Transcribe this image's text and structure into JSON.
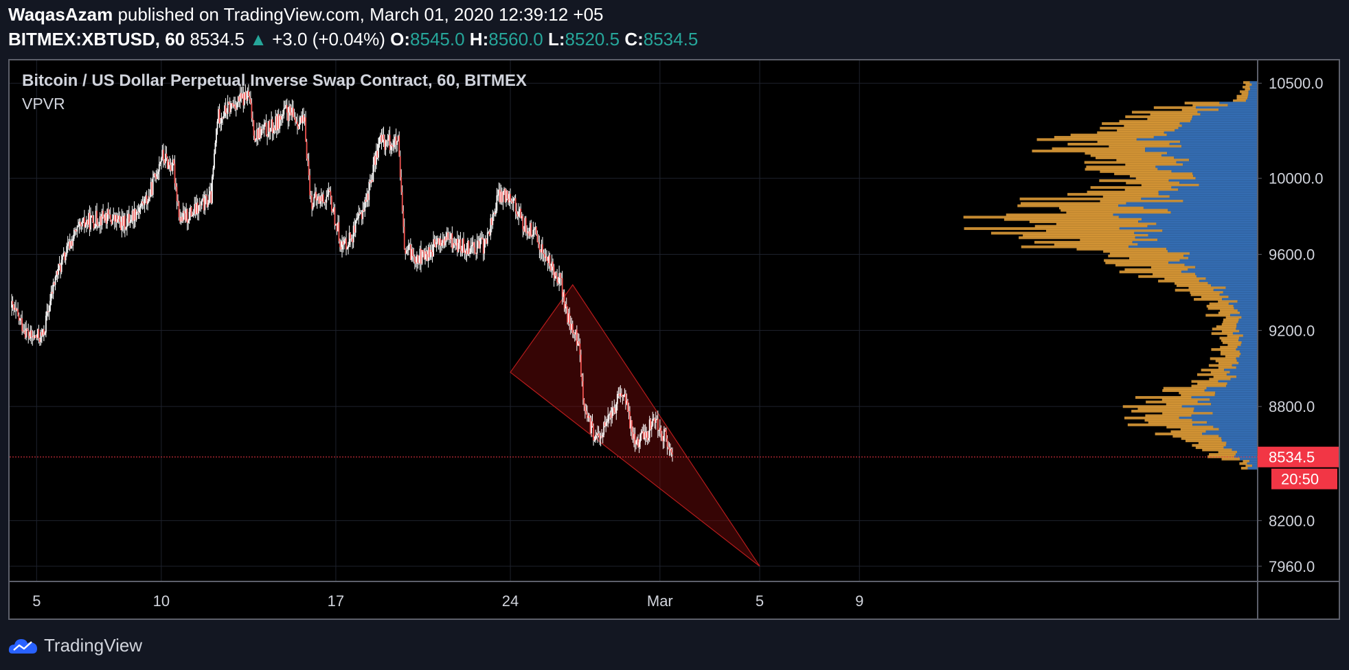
{
  "header": {
    "author": "WaqasAzam",
    "published_text": "published on TradingView.com, March 01, 2020 12:39:12 +05",
    "symbol": "BITMEX:XBTUSD, 60",
    "last_price": "8534.5",
    "change_arrow": "▲",
    "change_text": "+3.0 (+0.04%)",
    "o_label": "O:",
    "o_value": "8545.0",
    "h_label": "H:",
    "h_value": "8560.0",
    "l_label": "L:",
    "l_value": "8520.5",
    "c_label": "C:",
    "c_value": "8534.5"
  },
  "chart_title": "Bitcoin / US Dollar Perpetual Inverse Swap Contract, 60, BITMEX",
  "indicator_label": "VPVR",
  "footer": {
    "brand": "TradingView"
  },
  "colors": {
    "up": "#26a69a",
    "down": "#ef5350",
    "candle_up": "#ffffff",
    "wick": "#ffffff",
    "price_line": "#f23645",
    "vp_orange": "#e8a23a",
    "vp_blue": "#3a78c4",
    "triangle_fill": "rgba(120,10,10,0.45)",
    "triangle_edge": "#b71c1c"
  },
  "chart_data": {
    "type": "candlestick",
    "title": "Bitcoin / US Dollar Perpetual Inverse Swap Contract, 60, BITMEX",
    "x_ticks": [
      "5",
      "10",
      "17",
      "24",
      "Mar",
      "5",
      "9"
    ],
    "y_ticks": [
      10500,
      10000,
      9600,
      9200,
      8800,
      8200,
      7960
    ],
    "y_tick_labels": [
      "10500.0",
      "10000.0",
      "9600.0",
      "9200.0",
      "8800.0",
      "8200.0",
      "7960.0"
    ],
    "ylim": [
      7880,
      10620
    ],
    "last_price": 8534.5,
    "last_price_label": "8534.5",
    "countdown_label": "20:50",
    "price_path": [
      [
        "2020-02-04 00:00",
        9320
      ],
      [
        "2020-02-04 18:00",
        9160
      ],
      [
        "2020-02-05 06:00",
        9170
      ],
      [
        "2020-02-05 18:00",
        9480
      ],
      [
        "2020-02-06 12:00",
        9700
      ],
      [
        "2020-02-07 00:00",
        9770
      ],
      [
        "2020-02-07 18:00",
        9800
      ],
      [
        "2020-02-08 12:00",
        9760
      ],
      [
        "2020-02-09 12:00",
        9900
      ],
      [
        "2020-02-10 00:00",
        10120
      ],
      [
        "2020-02-10 12:00",
        10050
      ],
      [
        "2020-02-10 18:00",
        9780
      ],
      [
        "2020-02-11 12:00",
        9840
      ],
      [
        "2020-02-12 00:00",
        9900
      ],
      [
        "2020-02-12 06:00",
        10320
      ],
      [
        "2020-02-13 00:00",
        10400
      ],
      [
        "2020-02-13 12:00",
        10430
      ],
      [
        "2020-02-13 18:00",
        10230
      ],
      [
        "2020-02-14 12:00",
        10270
      ],
      [
        "2020-02-15 00:00",
        10350
      ],
      [
        "2020-02-15 18:00",
        10280
      ],
      [
        "2020-02-16 00:00",
        9880
      ],
      [
        "2020-02-16 18:00",
        9900
      ],
      [
        "2020-02-17 06:00",
        9640
      ],
      [
        "2020-02-17 18:00",
        9720
      ],
      [
        "2020-02-18 06:00",
        9900
      ],
      [
        "2020-02-18 18:00",
        10200
      ],
      [
        "2020-02-19 12:00",
        10180
      ],
      [
        "2020-02-19 18:00",
        9620
      ],
      [
        "2020-02-20 12:00",
        9580
      ],
      [
        "2020-02-21 00:00",
        9650
      ],
      [
        "2020-02-21 12:00",
        9680
      ],
      [
        "2020-02-22 00:00",
        9640
      ],
      [
        "2020-02-23 00:00",
        9650
      ],
      [
        "2020-02-23 12:00",
        9900
      ],
      [
        "2020-02-24 00:00",
        9920
      ],
      [
        "2020-02-24 12:00",
        9760
      ],
      [
        "2020-02-25 00:00",
        9700
      ],
      [
        "2020-02-25 12:00",
        9560
      ],
      [
        "2020-02-26 00:00",
        9470
      ],
      [
        "2020-02-26 06:00",
        9280
      ],
      [
        "2020-02-26 18:00",
        9120
      ],
      [
        "2020-02-27 00:00",
        8750
      ],
      [
        "2020-02-27 12:00",
        8620
      ],
      [
        "2020-02-28 00:00",
        8750
      ],
      [
        "2020-02-28 12:00",
        8880
      ],
      [
        "2020-02-29 00:00",
        8620
      ],
      [
        "2020-02-29 12:00",
        8660
      ],
      [
        "2020-02-29 18:00",
        8750
      ],
      [
        "2020-03-01 06:00",
        8620
      ],
      [
        "2020-03-01 12:00",
        8534.5
      ]
    ],
    "wedge": {
      "vertices": [
        [
          "2020-02-24 00:00",
          8980
        ],
        [
          "2020-02-26 12:00",
          9440
        ],
        [
          "2020-03-05 00:00",
          7960
        ]
      ]
    },
    "volume_profile": {
      "note": "VPVR histogram along the right edge, peak volume near 9750",
      "peak_price": 9750
    }
  }
}
